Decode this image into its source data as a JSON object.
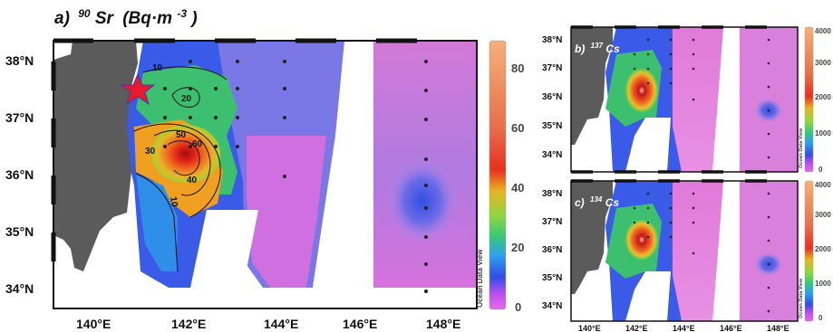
{
  "colors": {
    "land": "#5b5b5b",
    "frame": "#111111",
    "star": "#e8192c",
    "station": "#222222"
  },
  "main": {
    "label": "a)",
    "isotope_mass": "90",
    "isotope_symbol": "Sr",
    "unit_base": "(Bq·m",
    "unit_exp": "-3",
    "unit_close": ")",
    "lat_labels": [
      "38°N",
      "37°N",
      "36°N",
      "35°N",
      "34°N"
    ],
    "lon_labels": [
      "140°E",
      "142°E",
      "144°E",
      "146°E",
      "148°E"
    ],
    "colorbar_ticks": [
      "80",
      "60",
      "40",
      "20",
      "0"
    ],
    "watermark": "Ocean Data View",
    "contour_labels": [
      "10",
      "20",
      "30",
      "50",
      "60",
      "40",
      "10"
    ],
    "marker": "red-star"
  },
  "panel_b": {
    "label": "b)",
    "isotope_mass": "137",
    "isotope_symbol": "Cs",
    "lat_labels": [
      "38°N",
      "37°N",
      "36°N",
      "35°N",
      "34°N"
    ],
    "colorbar_ticks": [
      "4000",
      "3000",
      "2000",
      "1000",
      "0"
    ],
    "watermark": "Ocean Data View"
  },
  "panel_c": {
    "label": "c)",
    "isotope_mass": "134",
    "isotope_symbol": "Cs",
    "lat_labels": [
      "38°N",
      "37°N",
      "36°N",
      "35°N",
      "34°N"
    ],
    "lon_labels": [
      "140°E",
      "142°E",
      "144°E",
      "146°E",
      "148°E"
    ],
    "colorbar_ticks": [
      "4000",
      "3000",
      "2000",
      "1000",
      "0"
    ],
    "watermark": "Ocean Data View"
  }
}
